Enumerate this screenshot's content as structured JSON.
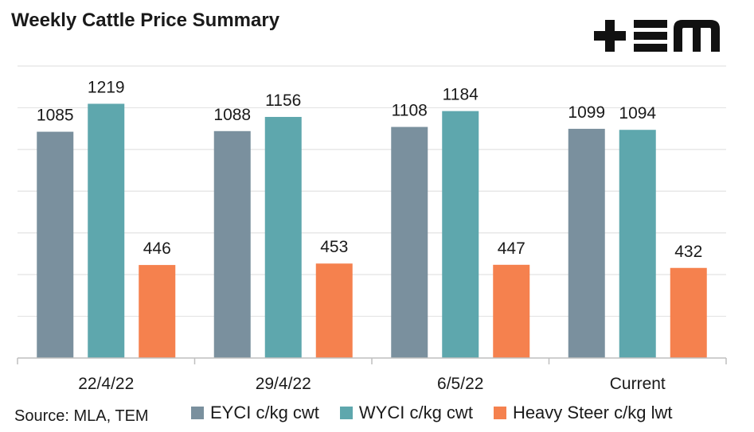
{
  "title": "Weekly Cattle Price Summary",
  "logo_text": "+EM",
  "source": "Source: MLA, TEM",
  "colors": {
    "series": [
      "#7a909e",
      "#5ea7ad",
      "#f5814e"
    ],
    "grid": "#e3e3e3",
    "axis": "#bfbfbf",
    "text": "#1a1a1a",
    "logo": "#111111"
  },
  "chart_data": {
    "type": "bar",
    "categories": [
      "22/4/22",
      "29/4/22",
      "6/5/22",
      "Current"
    ],
    "series": [
      {
        "name": "EYCI c/kg cwt",
        "values": [
          1085,
          1088,
          1108,
          1099
        ]
      },
      {
        "name": "WYCI c/kg cwt",
        "values": [
          1219,
          1156,
          1184,
          1094
        ]
      },
      {
        "name": "Heavy Steer c/kg lwt",
        "values": [
          446,
          453,
          447,
          432
        ]
      }
    ],
    "ylim": [
      0,
      1400
    ],
    "grid": true,
    "data_labels": true,
    "legend": "bottom",
    "y_tick_labels": false
  }
}
